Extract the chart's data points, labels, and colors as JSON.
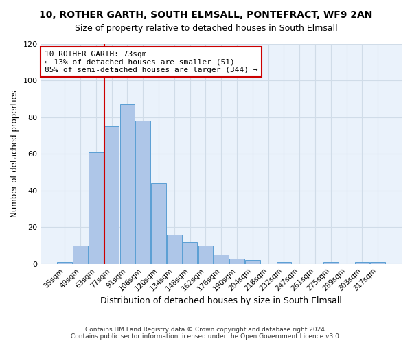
{
  "title": "10, ROTHER GARTH, SOUTH ELMSALL, PONTEFRACT, WF9 2AN",
  "subtitle": "Size of property relative to detached houses in South Elmsall",
  "xlabel": "Distribution of detached houses by size in South Elmsall",
  "ylabel": "Number of detached properties",
  "bar_labels": [
    "35sqm",
    "49sqm",
    "63sqm",
    "77sqm",
    "91sqm",
    "106sqm",
    "120sqm",
    "134sqm",
    "148sqm",
    "162sqm",
    "176sqm",
    "190sqm",
    "204sqm",
    "218sqm",
    "232sqm",
    "247sqm",
    "261sqm",
    "275sqm",
    "289sqm",
    "303sqm",
    "317sqm"
  ],
  "bar_heights": [
    1,
    10,
    61,
    75,
    87,
    78,
    44,
    16,
    12,
    10,
    5,
    3,
    2,
    0,
    1,
    0,
    0,
    1,
    0,
    1,
    1
  ],
  "bar_color": "#aec6e8",
  "bar_edge_color": "#5a9fd4",
  "vline_color": "#cc0000",
  "annotation_line1": "10 ROTHER GARTH: 73sqm",
  "annotation_line2": "← 13% of detached houses are smaller (51)",
  "annotation_line3": "85% of semi-detached houses are larger (344) →",
  "annotation_box_color": "#ffffff",
  "annotation_box_edge_color": "#cc0000",
  "ylim": [
    0,
    120
  ],
  "yticks": [
    0,
    20,
    40,
    60,
    80,
    100,
    120
  ],
  "grid_color": "#d0dce8",
  "background_color": "#eaf2fb",
  "footer_line1": "Contains HM Land Registry data © Crown copyright and database right 2024.",
  "footer_line2": "Contains public sector information licensed under the Open Government Licence v3.0."
}
